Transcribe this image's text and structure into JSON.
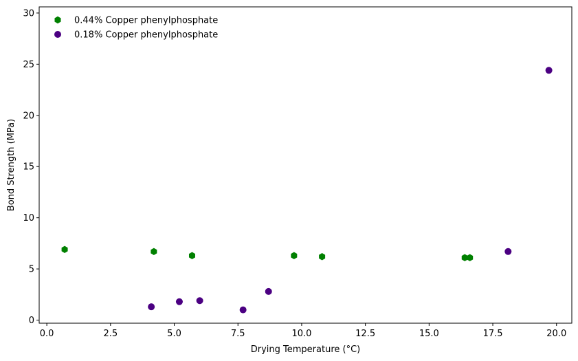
{
  "chart_data": {
    "type": "scatter",
    "title": "",
    "xlabel": "Drying Temperature (°C)",
    "ylabel": "Bond Strength (MPa)",
    "xlim": [
      -0.3,
      20.6
    ],
    "ylim": [
      -0.3,
      30.6
    ],
    "xticks": [
      0.0,
      2.5,
      5.0,
      7.5,
      10.0,
      12.5,
      15.0,
      17.5,
      20.0
    ],
    "xtick_labels": [
      "0.0",
      "2.5",
      "5.0",
      "7.5",
      "10.0",
      "12.5",
      "15.0",
      "17.5",
      "20.0"
    ],
    "yticks": [
      0,
      5,
      10,
      15,
      20,
      25,
      30
    ],
    "ytick_labels": [
      "0",
      "5",
      "10",
      "15",
      "20",
      "25",
      "30"
    ],
    "grid": false,
    "legend_position": "top-left",
    "series": [
      {
        "name": "0.44% Copper phenylphosphate",
        "color": "#008000",
        "marker": "hexagon",
        "x": [
          0.7,
          4.2,
          5.7,
          9.7,
          10.8,
          16.4,
          16.6
        ],
        "y": [
          6.9,
          6.7,
          6.3,
          6.3,
          6.2,
          6.1,
          6.1
        ]
      },
      {
        "name": "0.18% Copper phenylphosphate",
        "color": "#4b0082",
        "marker": "circle",
        "x": [
          4.1,
          5.2,
          6.0,
          7.7,
          8.7,
          18.1,
          19.7
        ],
        "y": [
          1.3,
          1.8,
          1.9,
          1.0,
          2.8,
          6.7,
          24.4
        ]
      }
    ]
  }
}
